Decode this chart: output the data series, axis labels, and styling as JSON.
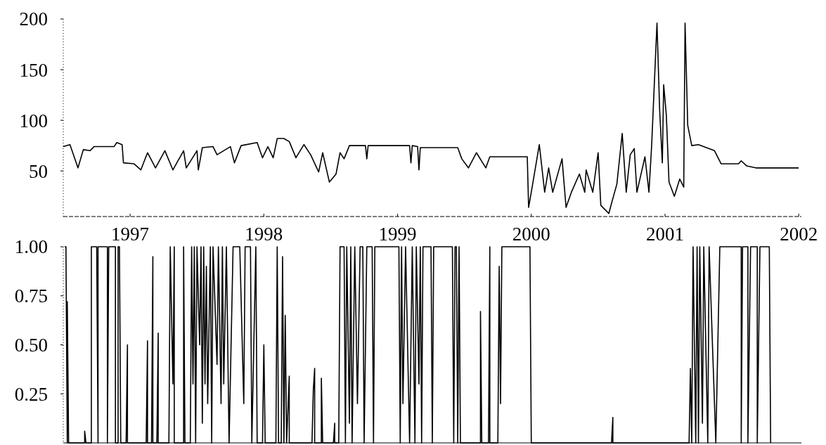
{
  "chart_data": [
    {
      "type": "line",
      "xlim": [
        1996.5,
        2002.02
      ],
      "ylim": [
        5,
        200
      ],
      "yticks": [
        50,
        100,
        150,
        200
      ],
      "xticks": [
        1997,
        1998,
        1999,
        2000,
        2001,
        2002
      ],
      "series": [
        {
          "color": "#000000",
          "x": [
            1996.5,
            1996.55,
            1996.61,
            1996.65,
            1996.7,
            1996.73,
            1996.88,
            1996.9,
            1996.94,
            1996.95,
            1997.03,
            1997.08,
            1997.13,
            1997.19,
            1997.26,
            1997.32,
            1997.4,
            1997.42,
            1997.5,
            1997.51,
            1997.54,
            1997.62,
            1997.65,
            1997.75,
            1997.78,
            1997.83,
            1997.95,
            1997.99,
            1998.03,
            1998.07,
            1998.1,
            1998.15,
            1998.19,
            1998.24,
            1998.3,
            1998.35,
            1998.41,
            1998.44,
            1998.49,
            1998.54,
            1998.57,
            1998.6,
            1998.64,
            1998.76,
            1998.77,
            1998.78,
            1999.09,
            1999.1,
            1999.11,
            1999.15,
            1999.16,
            1999.17,
            1999.45,
            1999.48,
            1999.53,
            1999.59,
            1999.66,
            1999.69,
            1999.97,
            1999.98,
            2000,
            2000.06,
            2000.1,
            2000.13,
            2000.16,
            2000.23,
            2000.26,
            2000.3,
            2000.36,
            2000.4,
            2000.41,
            2000.46,
            2000.5,
            2000.52,
            2000.58,
            2000.6,
            2000.64,
            2000.68,
            2000.71,
            2000.74,
            2000.77,
            2000.79,
            2000.85,
            2000.88,
            2000.9,
            2000.91,
            2000.94,
            2000.96,
            2000.98,
            2000.99,
            2001.01,
            2001.03,
            2001.07,
            2001.11,
            2001.14,
            2001.15,
            2001.17,
            2001.2,
            2001.25,
            2001.37,
            2001.42,
            2001.55,
            2001.57,
            2001.61,
            2001.68,
            2002
          ],
          "values": [
            74,
            76,
            53,
            71,
            70,
            74,
            74,
            78,
            76,
            58,
            57,
            51,
            68,
            53,
            70,
            51,
            70,
            53,
            70,
            51,
            73,
            74,
            66,
            74,
            58,
            75,
            78,
            63,
            74,
            63,
            82,
            82,
            79,
            63,
            76,
            66,
            49,
            68,
            39,
            47,
            68,
            62,
            75,
            75,
            62,
            75,
            75,
            58,
            75,
            74,
            51,
            73,
            73,
            62,
            53,
            68,
            53,
            64,
            64,
            14,
            29,
            76,
            29,
            53,
            29,
            62,
            14,
            29,
            47,
            29,
            51,
            29,
            68,
            16,
            8,
            18,
            37,
            87,
            29,
            66,
            72,
            29,
            64,
            29,
            75,
            105,
            196,
            110,
            58,
            135,
            105,
            39,
            25,
            42,
            34,
            196,
            95,
            75,
            76,
            70,
            57,
            57,
            60,
            55,
            53,
            53
          ]
        }
      ]
    },
    {
      "type": "line",
      "xlim": [
        1996.5,
        2002.02
      ],
      "ylim": [
        0,
        1
      ],
      "yticks": [
        {
          "value": 1,
          "label": "1.00"
        },
        {
          "value": 0.75,
          "label": "0.75"
        },
        {
          "value": 0.5,
          "label": "0.50"
        },
        {
          "value": 0.25,
          "label": "0.25"
        }
      ],
      "xticks": [
        1997,
        1998,
        1999,
        2000,
        2001,
        2002
      ],
      "tick_labels": "y",
      "series": [
        {
          "color": "#000000",
          "x": [
            1996.51,
            1996.52,
            1996.53,
            1996.53,
            1996.54,
            1996.66,
            1996.66,
            1996.67,
            1996.71,
            1996.71,
            1996.75,
            1996.76,
            1996.76,
            1996.83,
            1996.83,
            1996.84,
            1996.89,
            1996.89,
            1996.91,
            1996.91,
            1996.92,
            1996.93,
            1996.97,
            1996.98,
            1996.98,
            1997.12,
            1997.13,
            1997.13,
            1997.16,
            1997.17,
            1997.17,
            1997.2,
            1997.21,
            1997.21,
            1997.29,
            1997.3,
            1997.32,
            1997.33,
            1997.33,
            1997.4,
            1997.4,
            1997.41,
            1997.45,
            1997.46,
            1997.47,
            1997.48,
            1997.49,
            1997.5,
            1997.52,
            1997.53,
            1997.54,
            1997.55,
            1997.56,
            1997.57,
            1997.58,
            1997.6,
            1997.61,
            1997.62,
            1997.65,
            1997.66,
            1997.68,
            1997.69,
            1997.7,
            1997.72,
            1997.74,
            1997.77,
            1997.82,
            1997.85,
            1997.86,
            1997.9,
            1997.91,
            1997.94,
            1997.95,
            1997.99,
            1998,
            1998.01,
            1998.09,
            1998.1,
            1998.11,
            1998.13,
            1998.14,
            1998.15,
            1998.16,
            1998.17,
            1998.19,
            1998.19,
            1998.36,
            1998.37,
            1998.38,
            1998.38,
            1998.43,
            1998.43,
            1998.44,
            1998.52,
            1998.53,
            1998.53,
            1998.56,
            1998.57,
            1998.6,
            1998.61,
            1998.62,
            1998.64,
            1998.65,
            1998.66,
            1998.68,
            1998.7,
            1998.72,
            1998.74,
            1998.75,
            1998.77,
            1998.81,
            1998.82,
            1998.83,
            1999.01,
            1999.02,
            1999.03,
            1999.04,
            1999.06,
            1999.09,
            1999.11,
            1999.13,
            1999.14,
            1999.16,
            1999.17,
            1999.18,
            1999.19,
            1999.25,
            1999.26,
            1999.27,
            1999.34,
            1999.41,
            1999.42,
            1999.43,
            1999.44,
            1999.45,
            1999.46,
            1999.47,
            1999.62,
            1999.62,
            1999.63,
            1999.68,
            1999.69,
            1999.69,
            1999.75,
            1999.76,
            1999.77,
            1999.78,
            1999.99,
            2000,
            2000.6,
            2000.61,
            2000.61,
            2001.18,
            2001.19,
            2001.2,
            2001.21,
            2001.23,
            2001.24,
            2001.25,
            2001.26,
            2001.28,
            2001.29,
            2001.32,
            2001.33,
            2001.38,
            2001.41,
            2001.44,
            2001.57,
            2001.57,
            2001.58,
            2001.62,
            2001.62,
            2001.64,
            2001.69,
            2001.69,
            2001.71,
            2001.78,
            2001.79
          ],
          "values": [
            1,
            1,
            0,
            0.72,
            0,
            0,
            0.06,
            0,
            0,
            1,
            1,
            0,
            1,
            1,
            0,
            1,
            1,
            0,
            0,
            1,
            1,
            0,
            0,
            0.5,
            0,
            0,
            0.52,
            0,
            0,
            0.95,
            0,
            0,
            0.56,
            0,
            0,
            1,
            0.3,
            1,
            0,
            0,
            1,
            0,
            0,
            1,
            0.3,
            1,
            0,
            1,
            0.5,
            1,
            0.1,
            1,
            0.3,
            0.9,
            0.2,
            1,
            0,
            1,
            0.4,
            1,
            0.2,
            1,
            0.3,
            1,
            0,
            1,
            1,
            0.2,
            1,
            1,
            0,
            1,
            0,
            0,
            0.5,
            0,
            0,
            1,
            0,
            0,
            0.95,
            0,
            0.65,
            0,
            0.34,
            0,
            0,
            0.27,
            0.38,
            0,
            0,
            0.33,
            0,
            0,
            0.1,
            0,
            0,
            1,
            1,
            0,
            1,
            0.1,
            1,
            0,
            1,
            0.2,
            1,
            1,
            0,
            1,
            1,
            0,
            1,
            1,
            0,
            1,
            0.2,
            1,
            0,
            1,
            0,
            1,
            0.3,
            1,
            0,
            1,
            1,
            0,
            1,
            1,
            1,
            0,
            1,
            1,
            0,
            1,
            0,
            0,
            0.67,
            0,
            0,
            1,
            0,
            0,
            0.9,
            0.2,
            1,
            1,
            0,
            0,
            0.13,
            0,
            0,
            0.38,
            0,
            1,
            0,
            1,
            0,
            1,
            0.1,
            1,
            0,
            1,
            0,
            1,
            1,
            1,
            0,
            1,
            1,
            0,
            1,
            1,
            0,
            1,
            1,
            0
          ]
        }
      ]
    }
  ]
}
